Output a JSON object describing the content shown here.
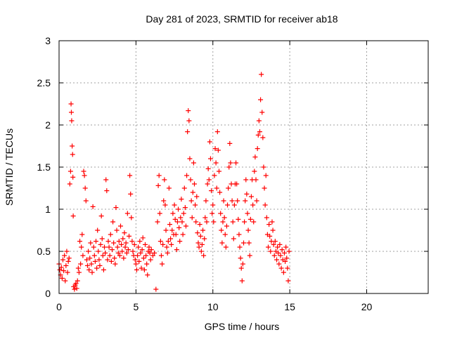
{
  "chart_data": {
    "type": "scatter",
    "title": "Day 281 of 2023, SRMTID for receiver ab18",
    "xlabel": "GPS time / hours",
    "ylabel": "SRMTID / TECUs",
    "xlim": [
      0,
      24
    ],
    "ylim": [
      0,
      3
    ],
    "xticks": [
      0,
      5,
      10,
      15,
      20
    ],
    "yticks": [
      0,
      0.5,
      1,
      1.5,
      2,
      2.5,
      3
    ],
    "xtick_labels": [
      "0",
      "5",
      "10",
      "15",
      "20"
    ],
    "ytick_labels": [
      "0",
      "0.5",
      "1",
      "1.5",
      "2",
      "2.5",
      "3"
    ],
    "grid": true,
    "marker": "+",
    "series": [
      {
        "name": "SRMTID",
        "color": "#ff0000",
        "points": [
          [
            0.0,
            0.35
          ],
          [
            0.05,
            0.28
          ],
          [
            0.1,
            0.22
          ],
          [
            0.15,
            0.31
          ],
          [
            0.2,
            0.18
          ],
          [
            0.25,
            0.4
          ],
          [
            0.3,
            0.27
          ],
          [
            0.35,
            0.45
          ],
          [
            0.4,
            0.15
          ],
          [
            0.45,
            0.33
          ],
          [
            0.5,
            0.5
          ],
          [
            0.55,
            0.25
          ],
          [
            0.6,
            0.38
          ],
          [
            0.65,
            0.42
          ],
          [
            0.7,
            1.3
          ],
          [
            0.75,
            1.45
          ],
          [
            0.78,
            2.25
          ],
          [
            0.8,
            2.15
          ],
          [
            0.82,
            2.05
          ],
          [
            0.85,
            1.75
          ],
          [
            0.88,
            1.65
          ],
          [
            0.9,
            1.38
          ],
          [
            0.92,
            0.92
          ],
          [
            0.95,
            0.08
          ],
          [
            1.0,
            0.05
          ],
          [
            1.05,
            0.1
          ],
          [
            1.1,
            0.12
          ],
          [
            1.15,
            0.06
          ],
          [
            1.2,
            0.15
          ],
          [
            1.25,
            0.3
          ],
          [
            1.3,
            0.25
          ],
          [
            1.35,
            0.62
          ],
          [
            1.4,
            0.35
          ],
          [
            1.45,
            0.55
          ],
          [
            1.5,
            0.7
          ],
          [
            1.55,
            0.45
          ],
          [
            1.6,
            1.45
          ],
          [
            1.65,
            1.4
          ],
          [
            1.7,
            1.25
          ],
          [
            1.75,
            1.1
          ],
          [
            1.8,
            0.4
          ],
          [
            1.85,
            0.33
          ],
          [
            1.9,
            0.5
          ],
          [
            1.95,
            0.28
          ],
          [
            2.0,
            0.42
          ],
          [
            2.05,
            0.6
          ],
          [
            2.1,
            0.35
          ],
          [
            2.15,
            0.25
          ],
          [
            2.2,
            1.03
          ],
          [
            2.25,
            0.55
          ],
          [
            2.3,
            0.45
          ],
          [
            2.35,
            0.38
          ],
          [
            2.4,
            0.62
          ],
          [
            2.45,
            0.3
          ],
          [
            2.5,
            0.75
          ],
          [
            2.55,
            0.5
          ],
          [
            2.6,
            0.4
          ],
          [
            2.65,
            0.33
          ],
          [
            2.7,
            0.58
          ],
          [
            2.75,
            0.92
          ],
          [
            2.8,
            0.65
          ],
          [
            2.85,
            0.45
          ],
          [
            2.9,
            0.28
          ],
          [
            2.95,
            0.55
          ],
          [
            3.0,
            0.48
          ],
          [
            3.05,
            1.35
          ],
          [
            3.1,
            1.22
          ],
          [
            3.15,
            0.4
          ],
          [
            3.2,
            0.62
          ],
          [
            3.25,
            0.55
          ],
          [
            3.3,
            0.45
          ],
          [
            3.35,
            0.7
          ],
          [
            3.4,
            0.38
          ],
          [
            3.45,
            0.52
          ],
          [
            3.5,
            0.85
          ],
          [
            3.55,
            0.6
          ],
          [
            3.6,
            0.42
          ],
          [
            3.65,
            0.35
          ],
          [
            3.7,
            1.02
          ],
          [
            3.75,
            0.75
          ],
          [
            3.8,
            0.55
          ],
          [
            3.85,
            0.48
          ],
          [
            3.9,
            0.62
          ],
          [
            3.95,
            0.45
          ],
          [
            4.0,
            0.8
          ],
          [
            4.05,
            0.58
          ],
          [
            4.1,
            0.5
          ],
          [
            4.15,
            0.65
          ],
          [
            4.2,
            0.42
          ],
          [
            4.25,
            0.72
          ],
          [
            4.3,
            0.55
          ],
          [
            4.35,
            0.6
          ],
          [
            4.4,
            0.48
          ],
          [
            4.45,
            0.95
          ],
          [
            4.5,
            0.52
          ],
          [
            4.55,
            0.68
          ],
          [
            4.6,
            1.4
          ],
          [
            4.65,
            1.18
          ],
          [
            4.7,
            0.9
          ],
          [
            4.75,
            0.62
          ],
          [
            4.8,
            0.5
          ],
          [
            4.85,
            0.45
          ],
          [
            4.9,
            0.58
          ],
          [
            4.95,
            0.4
          ],
          [
            5.0,
            0.35
          ],
          [
            5.05,
            0.28
          ],
          [
            5.1,
            0.45
          ],
          [
            5.15,
            0.55
          ],
          [
            5.2,
            0.38
          ],
          [
            5.25,
            0.62
          ],
          [
            5.3,
            0.48
          ],
          [
            5.35,
            0.3
          ],
          [
            5.4,
            0.52
          ],
          [
            5.45,
            0.66
          ],
          [
            5.5,
            0.42
          ],
          [
            5.55,
            0.28
          ],
          [
            5.6,
            0.58
          ],
          [
            5.65,
            0.45
          ],
          [
            5.7,
            0.35
          ],
          [
            5.75,
            0.22
          ],
          [
            5.8,
            0.5
          ],
          [
            5.85,
            0.55
          ],
          [
            5.9,
            0.48
          ],
          [
            5.95,
            0.4
          ],
          [
            6.0,
            0.52
          ],
          [
            6.1,
            0.45
          ],
          [
            6.2,
            0.48
          ],
          [
            6.3,
            0.05
          ],
          [
            6.4,
            0.85
          ],
          [
            6.45,
            1.28
          ],
          [
            6.5,
            1.4
          ],
          [
            6.55,
            0.95
          ],
          [
            6.6,
            0.62
          ],
          [
            6.65,
            0.45
          ],
          [
            6.7,
            0.35
          ],
          [
            6.75,
            0.58
          ],
          [
            6.8,
            1.1
          ],
          [
            6.85,
            1.35
          ],
          [
            6.9,
            1.05
          ],
          [
            6.95,
            0.75
          ],
          [
            7.0,
            0.55
          ],
          [
            7.05,
            0.48
          ],
          [
            7.1,
            0.62
          ],
          [
            7.15,
            1.25
          ],
          [
            7.2,
            0.82
          ],
          [
            7.25,
            0.65
          ],
          [
            7.3,
            0.58
          ],
          [
            7.35,
            0.75
          ],
          [
            7.4,
            0.95
          ],
          [
            7.45,
            0.7
          ],
          [
            7.5,
            1.05
          ],
          [
            7.55,
            0.88
          ],
          [
            7.6,
            0.7
          ],
          [
            7.65,
            0.52
          ],
          [
            7.7,
            0.85
          ],
          [
            7.75,
            1.0
          ],
          [
            7.8,
            0.78
          ],
          [
            7.85,
            0.62
          ],
          [
            7.9,
            0.9
          ],
          [
            7.95,
            1.12
          ],
          [
            8.0,
            0.85
          ],
          [
            8.05,
            0.7
          ],
          [
            8.1,
            0.95
          ],
          [
            8.15,
            1.25
          ],
          [
            8.2,
            1.02
          ],
          [
            8.25,
            0.8
          ],
          [
            8.3,
            1.4
          ],
          [
            8.35,
            1.92
          ],
          [
            8.4,
            2.17
          ],
          [
            8.45,
            2.05
          ],
          [
            8.5,
            1.6
          ],
          [
            8.55,
            1.35
          ],
          [
            8.6,
            1.1
          ],
          [
            8.65,
            0.9
          ],
          [
            8.7,
            1.2
          ],
          [
            8.75,
            1.55
          ],
          [
            8.8,
            1.3
          ],
          [
            8.85,
            1.05
          ],
          [
            8.9,
            0.85
          ],
          [
            8.95,
            1.15
          ],
          [
            9.0,
            0.72
          ],
          [
            9.05,
            0.6
          ],
          [
            9.1,
            0.55
          ],
          [
            9.15,
            0.82
          ],
          [
            9.2,
            0.68
          ],
          [
            9.25,
            0.5
          ],
          [
            9.3,
            0.58
          ],
          [
            9.35,
            0.75
          ],
          [
            9.4,
            0.45
          ],
          [
            9.45,
            0.65
          ],
          [
            9.5,
            0.9
          ],
          [
            9.55,
            1.1
          ],
          [
            9.6,
            0.85
          ],
          [
            9.65,
            1.3
          ],
          [
            9.7,
            1.48
          ],
          [
            9.75,
            1.35
          ],
          [
            9.8,
            1.8
          ],
          [
            9.85,
            1.6
          ],
          [
            9.9,
            1.22
          ],
          [
            9.95,
            0.95
          ],
          [
            10.0,
            1.05
          ],
          [
            10.05,
            0.85
          ],
          [
            10.1,
            1.4
          ],
          [
            10.15,
            1.72
          ],
          [
            10.2,
            1.55
          ],
          [
            10.25,
            1.25
          ],
          [
            10.3,
            1.92
          ],
          [
            10.35,
            1.7
          ],
          [
            10.4,
            1.45
          ],
          [
            10.45,
            1.2
          ],
          [
            10.5,
            0.95
          ],
          [
            10.55,
            0.75
          ],
          [
            10.6,
            0.6
          ],
          [
            10.65,
            0.85
          ],
          [
            10.7,
            1.1
          ],
          [
            10.75,
            0.9
          ],
          [
            10.8,
            0.7
          ],
          [
            10.85,
            0.55
          ],
          [
            10.9,
            0.8
          ],
          [
            10.95,
            1.05
          ],
          [
            11.0,
            1.25
          ],
          [
            11.05,
            1.5
          ],
          [
            11.1,
            1.78
          ],
          [
            11.15,
            1.55
          ],
          [
            11.2,
            1.3
          ],
          [
            11.25,
            1.1
          ],
          [
            11.3,
            0.85
          ],
          [
            11.35,
            0.65
          ],
          [
            11.4,
            1.05
          ],
          [
            11.45,
            1.3
          ],
          [
            11.5,
            1.55
          ],
          [
            11.55,
            1.3
          ],
          [
            11.6,
            1.1
          ],
          [
            11.65,
            0.88
          ],
          [
            11.7,
            0.7
          ],
          [
            11.75,
            0.55
          ],
          [
            11.8,
            0.42
          ],
          [
            11.85,
            0.3
          ],
          [
            11.9,
            0.15
          ],
          [
            11.95,
            0.35
          ],
          [
            12.0,
            0.6
          ],
          [
            12.05,
            0.85
          ],
          [
            12.1,
            1.1
          ],
          [
            12.15,
            1.35
          ],
          [
            12.2,
            1.18
          ],
          [
            12.25,
            0.95
          ],
          [
            12.3,
            0.75
          ],
          [
            12.35,
            0.6
          ],
          [
            12.4,
            0.45
          ],
          [
            12.45,
            0.88
          ],
          [
            12.5,
            1.15
          ],
          [
            12.55,
            1.35
          ],
          [
            12.6,
            1.05
          ],
          [
            12.65,
            0.85
          ],
          [
            12.7,
            1.45
          ],
          [
            12.75,
            1.62
          ],
          [
            12.8,
            1.35
          ],
          [
            12.85,
            1.1
          ],
          [
            12.9,
            1.72
          ],
          [
            12.95,
            1.88
          ],
          [
            13.0,
            2.05
          ],
          [
            13.05,
            1.92
          ],
          [
            13.1,
            2.3
          ],
          [
            13.15,
            2.6
          ],
          [
            13.2,
            2.15
          ],
          [
            13.25,
            1.85
          ],
          [
            13.3,
            1.5
          ],
          [
            13.35,
            1.25
          ],
          [
            13.4,
            1.05
          ],
          [
            13.45,
            1.4
          ],
          [
            13.5,
            0.9
          ],
          [
            13.55,
            0.7
          ],
          [
            13.6,
            0.55
          ],
          [
            13.65,
            0.82
          ],
          [
            13.7,
            0.68
          ],
          [
            13.75,
            0.5
          ],
          [
            13.8,
            0.62
          ],
          [
            13.85,
            0.85
          ],
          [
            13.9,
            0.75
          ],
          [
            13.95,
            0.58
          ],
          [
            14.0,
            0.45
          ],
          [
            14.05,
            0.62
          ],
          [
            14.1,
            0.5
          ],
          [
            14.15,
            0.4
          ],
          [
            14.2,
            0.55
          ],
          [
            14.25,
            0.48
          ],
          [
            14.3,
            0.35
          ],
          [
            14.35,
            0.58
          ],
          [
            14.4,
            0.45
          ],
          [
            14.45,
            0.3
          ],
          [
            14.5,
            0.52
          ],
          [
            14.55,
            0.4
          ],
          [
            14.6,
            0.25
          ],
          [
            14.65,
            0.48
          ],
          [
            14.7,
            0.38
          ],
          [
            14.75,
            0.55
          ],
          [
            14.8,
            0.42
          ],
          [
            14.85,
            0.3
          ],
          [
            14.9,
            0.15
          ],
          [
            14.95,
            0.5
          ]
        ]
      }
    ]
  }
}
